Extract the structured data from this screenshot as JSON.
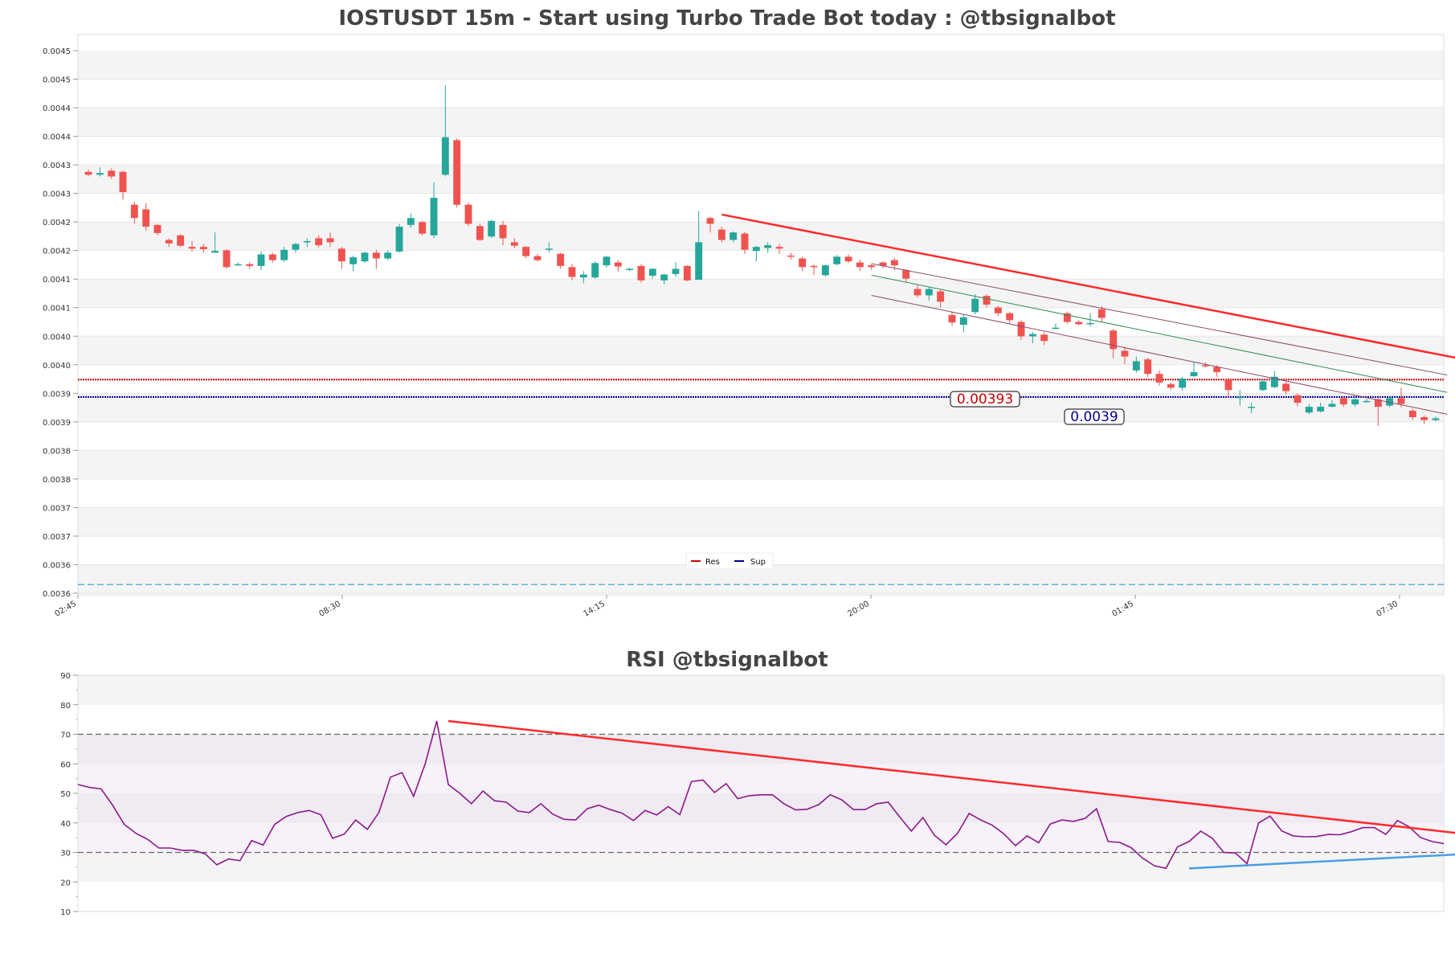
{
  "chart_data": [
    {
      "id": "price",
      "type": "candlestick",
      "title": "IOSTUSDT 15m - Start using Turbo Trade Bot today : @tbsignalbot",
      "y_ticks": [
        "0.0036",
        "0.0036",
        "0.0037",
        "0.0037",
        "0.0038",
        "0.0038",
        "0.0039",
        "0.0039",
        "0.0040",
        "0.0040",
        "0.0041",
        "0.0041",
        "0.0042",
        "0.0042",
        "0.0043",
        "0.0043",
        "0.0044",
        "0.0044",
        "0.0045",
        "0.0045"
      ],
      "ylim": [
        0.00356,
        0.0045
      ],
      "x_ticks": [
        "02:45",
        "08:30",
        "14:15",
        "20:00",
        "01:45",
        "07:30"
      ],
      "grid": "horizontal bands",
      "colors": {
        "up": "#26a69a",
        "down": "#ef5350",
        "res": "#cc0000",
        "sup": "#00008b",
        "trend": "#ff2a2a",
        "channel_mid": "#2e8b57",
        "channel_edge": "#8b4a6b",
        "dashed": "#5fb3d9"
      },
      "levels": {
        "res": {
          "value": 0.00393,
          "label": "0.00393"
        },
        "sup": {
          "value": 0.0039,
          "label": "0.0039"
        },
        "dashed": {
          "value": 0.003575
        }
      },
      "legend": {
        "position": "bottom-center",
        "entries": [
          {
            "name": "Res",
            "color": "#cc0000"
          },
          {
            "name": "Sup",
            "color": "#00008b"
          }
        ]
      },
      "trendline": {
        "from": [
          55,
          0.004216
        ],
        "to": [
          120,
          0.003963
        ]
      },
      "channel": {
        "upper": {
          "from": [
            68,
            0.004131
          ],
          "to": [
            118,
            0.003938
          ]
        },
        "middle": {
          "from": [
            68,
            0.004111
          ],
          "to": [
            118,
            0.003908
          ]
        },
        "lower": {
          "from": [
            68,
            0.004076
          ],
          "to": [
            118,
            0.00387
          ]
        }
      },
      "candles": [
        [
          0.00429,
          0.004285,
          0.004294,
          0.004282
        ],
        [
          0.004285,
          0.004288,
          0.004298,
          0.004282
        ],
        [
          0.004292,
          0.004282,
          0.004296,
          0.004278
        ],
        [
          0.00429,
          0.004255,
          0.004292,
          0.004242
        ],
        [
          0.004233,
          0.00421,
          0.004238,
          0.0042
        ],
        [
          0.004225,
          0.004195,
          0.004236,
          0.004188
        ],
        [
          0.004198,
          0.004184,
          0.0042,
          0.00418
        ],
        [
          0.004172,
          0.004166,
          0.004175,
          0.00416
        ],
        [
          0.00418,
          0.004162,
          0.004182,
          0.00416
        ],
        [
          0.00416,
          0.004157,
          0.00417,
          0.004152
        ],
        [
          0.00416,
          0.004156,
          0.004165,
          0.00415
        ],
        [
          0.00415,
          0.004153,
          0.004185,
          0.00415
        ],
        [
          0.004154,
          0.004125,
          0.004156,
          0.004122
        ],
        [
          0.00413,
          0.00413,
          0.004133,
          0.004127
        ],
        [
          0.00413,
          0.004127,
          0.004133,
          0.004122
        ],
        [
          0.004127,
          0.004147,
          0.004152,
          0.00412
        ],
        [
          0.004147,
          0.004137,
          0.00415,
          0.004133
        ],
        [
          0.004137,
          0.004155,
          0.00416,
          0.004134
        ],
        [
          0.004155,
          0.004165,
          0.004167,
          0.00415
        ],
        [
          0.004168,
          0.00417,
          0.004175,
          0.00416
        ],
        [
          0.004175,
          0.004163,
          0.00418,
          0.004159
        ],
        [
          0.004175,
          0.004168,
          0.004185,
          0.00416
        ],
        [
          0.004157,
          0.004135,
          0.00416,
          0.004122
        ],
        [
          0.00413,
          0.004142,
          0.004145,
          0.004118
        ],
        [
          0.004135,
          0.00415,
          0.004152,
          0.004132
        ],
        [
          0.00415,
          0.00414,
          0.004155,
          0.004122
        ],
        [
          0.00414,
          0.00415,
          0.004154,
          0.004137
        ],
        [
          0.004152,
          0.004195,
          0.0042,
          0.00415
        ],
        [
          0.004198,
          0.00421,
          0.004218,
          0.004193
        ],
        [
          0.004203,
          0.004183,
          0.004205,
          0.00418
        ],
        [
          0.00418,
          0.004245,
          0.004272,
          0.004175
        ],
        [
          0.004285,
          0.00435,
          0.00444,
          0.004282
        ],
        [
          0.004345,
          0.004233,
          0.004348,
          0.004228
        ],
        [
          0.004233,
          0.0042,
          0.004237,
          0.004196
        ],
        [
          0.004196,
          0.004172,
          0.0042,
          0.00417
        ],
        [
          0.004178,
          0.004205,
          0.004207,
          0.004175
        ],
        [
          0.004198,
          0.004175,
          0.004205,
          0.004163
        ],
        [
          0.004168,
          0.004162,
          0.004175,
          0.004158
        ],
        [
          0.00416,
          0.004144,
          0.004162,
          0.00414
        ],
        [
          0.004144,
          0.004137,
          0.004148,
          0.004135
        ],
        [
          0.004157,
          0.004157,
          0.004168,
          0.00415
        ],
        [
          0.004148,
          0.004127,
          0.00415,
          0.004122
        ],
        [
          0.004125,
          0.004108,
          0.00413,
          0.004102
        ],
        [
          0.004107,
          0.004112,
          0.004118,
          0.004097
        ],
        [
          0.004107,
          0.004132,
          0.004135,
          0.004105
        ],
        [
          0.004128,
          0.004143,
          0.004144,
          0.004124
        ],
        [
          0.004133,
          0.004126,
          0.004137,
          0.004117
        ],
        [
          0.004122,
          0.004122,
          0.004124,
          0.004118
        ],
        [
          0.004127,
          0.004102,
          0.00413,
          0.004098
        ],
        [
          0.00411,
          0.004122,
          0.004123,
          0.004105
        ],
        [
          0.004102,
          0.004112,
          0.004114,
          0.004095
        ],
        [
          0.004113,
          0.004122,
          0.004133,
          0.004108
        ],
        [
          0.004127,
          0.004102,
          0.004128,
          0.0041
        ],
        [
          0.004103,
          0.004168,
          0.004222,
          0.004103
        ],
        [
          0.00421,
          0.0042,
          0.004212,
          0.004185
        ],
        [
          0.00419,
          0.004172,
          0.004195,
          0.004168
        ],
        [
          0.004172,
          0.004185,
          0.004187,
          0.004168
        ],
        [
          0.004183,
          0.004155,
          0.004186,
          0.004148
        ],
        [
          0.004153,
          0.00416,
          0.004162,
          0.004135
        ],
        [
          0.004158,
          0.004163,
          0.004168,
          0.00415
        ],
        [
          0.00416,
          0.004157,
          0.004165,
          0.004148
        ],
        [
          0.004145,
          0.004143,
          0.00415,
          0.004138
        ],
        [
          0.00414,
          0.004125,
          0.004143,
          0.004118
        ],
        [
          0.004127,
          0.004125,
          0.00413,
          0.004111
        ],
        [
          0.004111,
          0.004128,
          0.00413,
          0.004108
        ],
        [
          0.00413,
          0.004143,
          0.004146,
          0.004128
        ],
        [
          0.004143,
          0.004135,
          0.004147,
          0.004132
        ],
        [
          0.004133,
          0.004125,
          0.004138,
          0.004118
        ],
        [
          0.004128,
          0.004125,
          0.00413,
          0.00412
        ],
        [
          0.004133,
          0.004127,
          0.004135,
          0.004123
        ],
        [
          0.004137,
          0.004128,
          0.004141,
          0.00412
        ],
        [
          0.00412,
          0.004105,
          0.004122,
          0.0041
        ],
        [
          0.004087,
          0.004076,
          0.004094,
          0.004072
        ],
        [
          0.004076,
          0.004087,
          0.00409,
          0.004067
        ],
        [
          0.004083,
          0.004065,
          0.004087,
          0.004055
        ],
        [
          0.004042,
          0.004029,
          0.004047,
          0.004023
        ],
        [
          0.004025,
          0.004038,
          0.004042,
          0.004012
        ],
        [
          0.004047,
          0.00407,
          0.004078,
          0.004043
        ],
        [
          0.004075,
          0.00406,
          0.004078,
          0.004055
        ],
        [
          0.004055,
          0.004045,
          0.004058,
          0.00404
        ],
        [
          0.004045,
          0.004033,
          0.004048,
          0.004028
        ],
        [
          0.00403,
          0.004005,
          0.004033,
          0.003999
        ],
        [
          0.004005,
          0.004009,
          0.004013,
          0.003993
        ],
        [
          0.004008,
          0.003997,
          0.004012,
          0.00399
        ],
        [
          0.00402,
          0.00402,
          0.004027,
          0.004017
        ],
        [
          0.004045,
          0.00403,
          0.004048,
          0.004027
        ],
        [
          0.00403,
          0.004026,
          0.004033,
          0.004024
        ],
        [
          0.004028,
          0.004028,
          0.004045,
          0.004022
        ],
        [
          0.004052,
          0.004037,
          0.004057,
          0.00403
        ],
        [
          0.004015,
          0.003983,
          0.004018,
          0.003967
        ],
        [
          0.00398,
          0.00397,
          0.003987,
          0.003957
        ],
        [
          0.003946,
          0.003962,
          0.00397,
          0.003942
        ],
        [
          0.003965,
          0.00394,
          0.003968,
          0.003935
        ],
        [
          0.00394,
          0.003925,
          0.003946,
          0.00392
        ],
        [
          0.003922,
          0.003916,
          0.003925,
          0.003912
        ],
        [
          0.003916,
          0.003932,
          0.003935,
          0.003911
        ],
        [
          0.003936,
          0.003943,
          0.00396,
          0.003934
        ],
        [
          0.003955,
          0.003954,
          0.00396,
          0.003951
        ],
        [
          0.003952,
          0.003943,
          0.003955,
          0.003935
        ],
        [
          0.00393,
          0.003912,
          0.003933,
          0.0039
        ],
        [
          0.0039,
          0.0039,
          0.003912,
          0.003885
        ],
        [
          0.003883,
          0.003883,
          0.00389,
          0.003872
        ],
        [
          0.003912,
          0.003927,
          0.00393,
          0.00391
        ],
        [
          0.003917,
          0.003935,
          0.003945,
          0.003915
        ],
        [
          0.003923,
          0.00391,
          0.003926,
          0.003904
        ],
        [
          0.003903,
          0.00389,
          0.003906,
          0.003884
        ],
        [
          0.003873,
          0.003883,
          0.003888,
          0.00387
        ],
        [
          0.003875,
          0.003883,
          0.00389,
          0.003873
        ],
        [
          0.003883,
          0.003888,
          0.003895,
          0.003882
        ],
        [
          0.003898,
          0.003887,
          0.0039,
          0.003883
        ],
        [
          0.003887,
          0.003896,
          0.003898,
          0.003883
        ],
        [
          0.003893,
          0.003893,
          0.003897,
          0.00389
        ],
        [
          0.003896,
          0.003883,
          0.003898,
          0.00385
        ],
        [
          0.003885,
          0.003898,
          0.0039,
          0.003882
        ],
        [
          0.003898,
          0.003888,
          0.003916,
          0.003882
        ],
        [
          0.003876,
          0.003865,
          0.00388,
          0.00386
        ],
        [
          0.003865,
          0.00386,
          0.003868,
          0.003853
        ],
        [
          0.00386,
          0.003863,
          0.003866,
          0.003858
        ]
      ]
    },
    {
      "id": "rsi",
      "type": "line",
      "title": "RSI @tbsignalbot",
      "y_ticks": [
        "10",
        "20",
        "30",
        "40",
        "50",
        "60",
        "70",
        "80",
        "90"
      ],
      "ylim": [
        10,
        90
      ],
      "overbought": 70,
      "oversold": 30,
      "colors": {
        "line": "#8b1a8b",
        "trend_down": "#ff2a2a",
        "trend_up": "#4a9de6",
        "band": "#e8d6ee"
      },
      "trend_down": {
        "from": [
          32,
          74.5
        ],
        "to": [
          120,
          36.2
        ]
      },
      "trend_up": {
        "from": [
          96,
          24.6
        ],
        "to": [
          120,
          29.5
        ]
      },
      "values": [
        53,
        52,
        51.5,
        46,
        39.5,
        36.5,
        34.5,
        31.5,
        31.5,
        30.7,
        30.7,
        29.5,
        25.8,
        27.8,
        27.2,
        34,
        32.5,
        39.5,
        42.2,
        43.5,
        44.2,
        42.7,
        34.8,
        36.2,
        41,
        37.8,
        43.5,
        55.5,
        57,
        49,
        60,
        74.5,
        53,
        50,
        46.5,
        50.8,
        47.5,
        47,
        44,
        43.5,
        46.5,
        43,
        41.2,
        41,
        44.8,
        46,
        44.5,
        43.3,
        40.8,
        44.2,
        42.7,
        45.5,
        42.8,
        54,
        54.5,
        50.3,
        53.3,
        48.2,
        49.2,
        49.5,
        49.5,
        46.5,
        44.4,
        44.6,
        46.2,
        49.5,
        47.8,
        44.5,
        44.5,
        46.5,
        47,
        42,
        37.2,
        41.8,
        35.8,
        32.6,
        36.5,
        43.2,
        41,
        39.2,
        36.3,
        32.3,
        35.6,
        33.3,
        39.6,
        41,
        40.5,
        41.5,
        44.8,
        33.7,
        33.4,
        31.6,
        28,
        25.5,
        24.6,
        31.9,
        33.7,
        37.2,
        34.8,
        30,
        29.8,
        26.2,
        40,
        42.3,
        37.3,
        35.6,
        35.3,
        35.4,
        36.1,
        36,
        37,
        38.4,
        38.4,
        36.1,
        40.8,
        38.7,
        35,
        33.7,
        33
      ]
    }
  ]
}
